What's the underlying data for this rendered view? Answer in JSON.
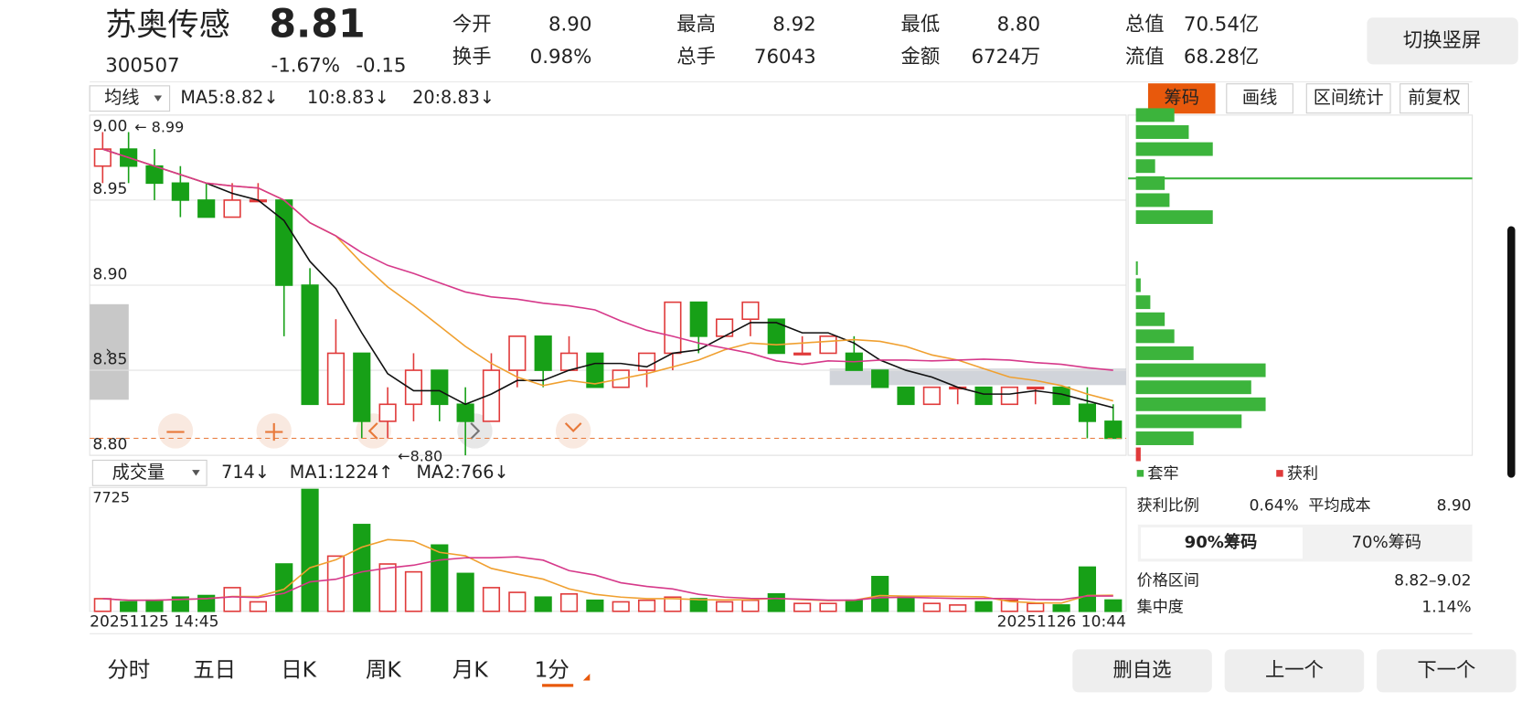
{
  "header": {
    "name": "苏奥传感",
    "price": "8.81",
    "code": "300507",
    "change_pct": "-1.67%",
    "change": "-0.15",
    "quotes": [
      {
        "label": "今开",
        "value": "8.90"
      },
      {
        "label": "最高",
        "value": "8.92"
      },
      {
        "label": "最低",
        "value": "8.80"
      },
      {
        "label": "总值",
        "value": "70.54亿"
      },
      {
        "label": "换手",
        "value": "0.98%"
      },
      {
        "label": "总手",
        "value": "76043"
      },
      {
        "label": "金额",
        "value": "6724万"
      },
      {
        "label": "流值",
        "value": "68.28亿"
      }
    ],
    "rotate_button": "切换竖屏"
  },
  "toolbar": {
    "ma_select": "均线",
    "ma5": "MA5:8.82↓",
    "ma10": "10:8.83↓",
    "ma20": "20:8.83↓",
    "buttons": [
      "筹码",
      "画线",
      "区间统计",
      "前复权"
    ]
  },
  "vol_toolbar": {
    "select": "成交量",
    "vol": "714↓",
    "ma1": "MA1:1224↑",
    "ma2": "MA2:766↓"
  },
  "chart_data": {
    "type": "candlestick",
    "ylim": [
      8.8,
      9.0
    ],
    "yticks": [
      {
        "value": 8.8,
        "label": "8.80"
      },
      8.85,
      {
        "value": 8.9,
        "label": "8.90"
      },
      8.95,
      {
        "value": 9,
        "label": "9.00"
      }
    ],
    "open": [
      8.97,
      8.98,
      8.97,
      8.96,
      8.95,
      8.94,
      8.95,
      8.95,
      8.9,
      8.83,
      8.86,
      8.82,
      8.83,
      8.85,
      8.83,
      8.82,
      8.85,
      8.87,
      8.85,
      8.86,
      8.84,
      8.85,
      8.86,
      8.89,
      8.87,
      8.88,
      8.88,
      8.86,
      8.86,
      8.86,
      8.85,
      8.84,
      8.83,
      8.84,
      8.84,
      8.83,
      8.84,
      8.84,
      8.83,
      8.82
    ],
    "close": [
      8.98,
      8.97,
      8.96,
      8.95,
      8.94,
      8.95,
      8.95,
      8.9,
      8.83,
      8.86,
      8.82,
      8.83,
      8.85,
      8.83,
      8.82,
      8.85,
      8.87,
      8.85,
      8.86,
      8.84,
      8.85,
      8.86,
      8.89,
      8.87,
      8.88,
      8.89,
      8.86,
      8.86,
      8.87,
      8.85,
      8.84,
      8.83,
      8.84,
      8.84,
      8.83,
      8.84,
      8.84,
      8.83,
      8.82,
      8.81
    ],
    "high": [
      8.99,
      8.99,
      8.98,
      8.97,
      8.96,
      8.96,
      8.96,
      8.95,
      8.91,
      8.88,
      8.86,
      8.84,
      8.86,
      8.85,
      8.84,
      8.86,
      8.87,
      8.87,
      8.87,
      8.86,
      8.85,
      8.86,
      8.89,
      8.89,
      8.88,
      8.89,
      8.88,
      8.87,
      8.87,
      8.87,
      8.85,
      8.84,
      8.84,
      8.84,
      8.84,
      8.84,
      8.84,
      8.84,
      8.84,
      8.83
    ],
    "low": [
      8.96,
      8.96,
      8.95,
      8.94,
      8.94,
      8.94,
      8.95,
      8.87,
      8.83,
      8.83,
      8.81,
      8.81,
      8.82,
      8.82,
      8.8,
      8.82,
      8.84,
      8.84,
      8.85,
      8.84,
      8.84,
      8.84,
      8.85,
      8.86,
      8.87,
      8.87,
      8.86,
      8.86,
      8.86,
      8.85,
      8.84,
      8.83,
      8.83,
      8.83,
      8.83,
      8.83,
      8.83,
      8.83,
      8.81,
      8.81
    ],
    "volume": [
      800,
      600,
      700,
      900,
      1000,
      1500,
      600,
      3000,
      7725,
      3500,
      5500,
      3000,
      2500,
      4200,
      2400,
      1500,
      1200,
      900,
      1100,
      700,
      600,
      700,
      900,
      800,
      600,
      700,
      1100,
      500,
      500,
      700,
      2200,
      900,
      500,
      400,
      600,
      700,
      500,
      400,
      2800,
      714
    ],
    "volume_ylim": [
      0,
      7725
    ],
    "volume_yticks": [
      7725
    ],
    "x_start": "20251125 14:45",
    "x_end": "20251126 10:44",
    "high_note": "← 8.99",
    "low_note": "←8.80",
    "up_color": "#e03a3a",
    "down_color": "#17a017"
  },
  "chips": {
    "prices": [
      8.8,
      8.81,
      8.82,
      8.83,
      8.84,
      8.85,
      8.86,
      8.87,
      8.88,
      8.89,
      8.9,
      8.91,
      8.94,
      8.95,
      8.96,
      8.97,
      8.98,
      8.99,
      9.0
    ],
    "amounts": [
      5,
      60,
      110,
      135,
      120,
      135,
      60,
      40,
      30,
      15,
      5,
      2,
      80,
      35,
      30,
      20,
      80,
      55,
      40
    ],
    "xlim": [
      0,
      350
    ],
    "legend": [
      "套牢",
      "获利"
    ],
    "profit_label": "获利比例",
    "profit_value": "0.64%",
    "cost_label": "平均成本",
    "cost_value": "8.90",
    "tabs": [
      "90%筹码",
      "70%筹码"
    ],
    "range_label": "价格区间",
    "range_value": "8.82–9.02",
    "conc_label": "集中度",
    "conc_value": "1.14%"
  },
  "tabs": [
    "分时",
    "五日",
    "日K",
    "周K",
    "月K",
    "1分"
  ],
  "actions": [
    "删自选",
    "上一个",
    "下一个"
  ]
}
